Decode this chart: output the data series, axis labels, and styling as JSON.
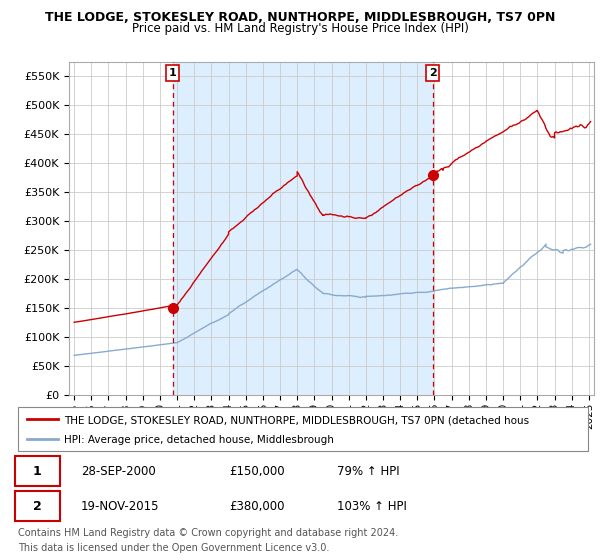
{
  "title": "THE LODGE, STOKESLEY ROAD, NUNTHORPE, MIDDLESBROUGH, TS7 0PN",
  "subtitle": "Price paid vs. HM Land Registry's House Price Index (HPI)",
  "background_color": "#ffffff",
  "grid_color": "#cccccc",
  "shade_color": "#ddeeff",
  "annotation1": {
    "label": "1",
    "date_x": 2000.75,
    "y": 150000
  },
  "annotation2": {
    "label": "2",
    "date_x": 2015.9,
    "y": 380000
  },
  "legend_label1": "THE LODGE, STOKESLEY ROAD, NUNTHORPE, MIDDLESBROUGH, TS7 0PN (detached hous",
  "legend_label2": "HPI: Average price, detached house, Middlesbrough",
  "footer1": "Contains HM Land Registry data © Crown copyright and database right 2024.",
  "footer2": "This data is licensed under the Open Government Licence v3.0.",
  "table_row1": [
    "1",
    "28-SEP-2000",
    "£150,000",
    "79% ↑ HPI"
  ],
  "table_row2": [
    "2",
    "19-NOV-2015",
    "£380,000",
    "103% ↑ HPI"
  ],
  "property_line_color": "#cc0000",
  "hpi_line_color": "#88aacc",
  "vline_color": "#cc0000",
  "ylim": [
    0,
    575000
  ],
  "yticks": [
    0,
    50000,
    100000,
    150000,
    200000,
    250000,
    300000,
    350000,
    400000,
    450000,
    500000,
    550000
  ],
  "xlim_left": 1994.7,
  "xlim_right": 2025.3
}
